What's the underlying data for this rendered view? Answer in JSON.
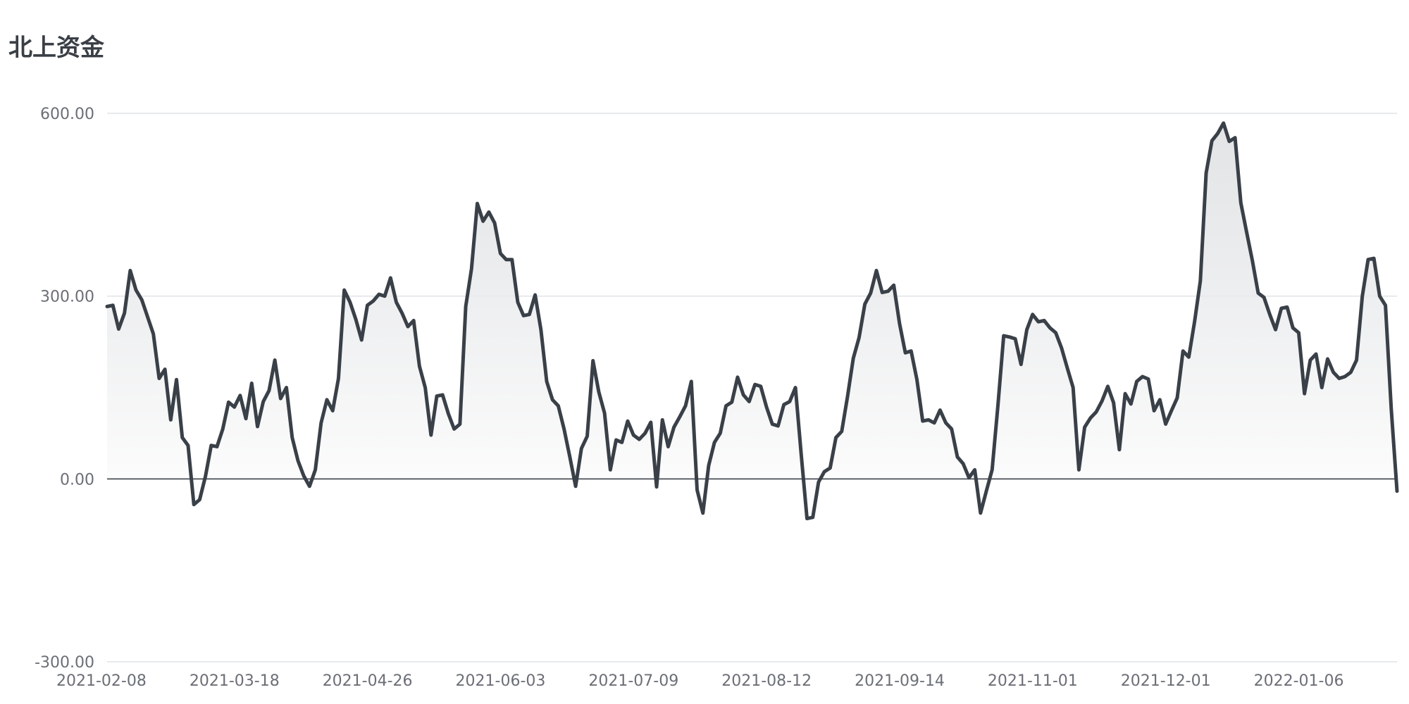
{
  "chart_data": {
    "type": "area",
    "title": "北上资金",
    "ylim": [
      -300,
      600
    ],
    "y_ticks": [
      "600.00",
      "300.00",
      "0.00",
      "-300.00"
    ],
    "y_tick_values": [
      600,
      300,
      0,
      -300
    ],
    "x_tick_labels": [
      "2021-02-08",
      "2021-03-18",
      "2021-04-26",
      "2021-06-03",
      "2021-07-09",
      "2021-08-12",
      "2021-09-14",
      "2021-11-01",
      "2021-12-01",
      "2022-01-06"
    ],
    "x_tick_indices": [
      0,
      23,
      46,
      69,
      92,
      115,
      138,
      161,
      184,
      207
    ],
    "grid": true,
    "legend": "none",
    "colors": {
      "line": "#3a4048",
      "fill_top": "#d9dbde",
      "fill_bottom": "#ffffff",
      "grid": "#dfe3e8",
      "zero_line": "#555a61"
    },
    "series": [
      {
        "values": [
          283,
          285,
          246,
          272,
          342,
          310,
          294,
          266,
          238,
          165,
          180,
          97,
          163,
          68,
          55,
          -42,
          -34,
          4,
          55,
          53,
          82,
          126,
          118,
          137,
          99,
          157,
          86,
          127,
          145,
          195,
          132,
          150,
          68,
          30,
          5,
          -12,
          15,
          92,
          130,
          112,
          165,
          310,
          290,
          262,
          228,
          285,
          292,
          303,
          300,
          330,
          290,
          272,
          250,
          260,
          185,
          150,
          72,
          136,
          138,
          107,
          82,
          90,
          283,
          345,
          452,
          423,
          438,
          420,
          370,
          360,
          360,
          290,
          268,
          270,
          302,
          245,
          160,
          130,
          120,
          82,
          36,
          -12,
          50,
          70,
          194,
          143,
          108,
          15,
          64,
          60,
          95,
          72,
          65,
          75,
          93,
          -13,
          97,
          53,
          85,
          102,
          120,
          160,
          -18,
          -56,
          22,
          60,
          75,
          120,
          126,
          167,
          138,
          127,
          155,
          152,
          118,
          90,
          87,
          122,
          127,
          150,
          40,
          -65,
          -63,
          -5,
          12,
          18,
          68,
          78,
          135,
          198,
          232,
          287,
          305,
          342,
          306,
          308,
          318,
          255,
          207,
          210,
          163,
          95,
          97,
          92,
          113,
          92,
          82,
          36,
          25,
          2,
          15,
          -56,
          -20,
          15,
          120,
          235,
          233,
          230,
          188,
          245,
          270,
          258,
          260,
          248,
          240,
          215,
          182,
          150,
          15,
          85,
          100,
          110,
          128,
          152,
          125,
          48,
          140,
          123,
          160,
          168,
          164,
          112,
          130,
          90,
          112,
          133,
          210,
          200,
          258,
          325,
          502,
          555,
          567,
          584,
          554,
          560,
          453,
          405,
          358,
          305,
          298,
          270,
          245,
          280,
          282,
          248,
          240,
          140,
          195,
          205,
          150,
          197,
          175,
          165,
          168,
          175,
          195,
          300,
          360,
          362,
          300,
          285,
          115,
          -20
        ]
      }
    ]
  }
}
